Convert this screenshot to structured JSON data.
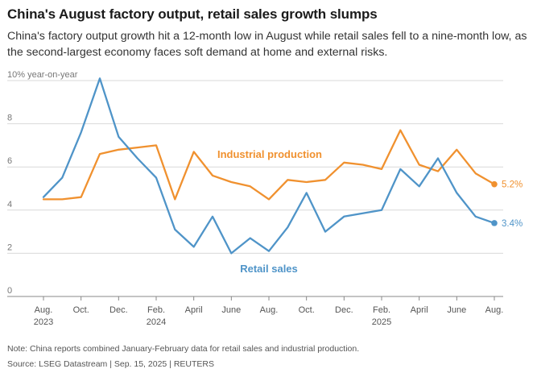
{
  "title": "China's August factory output, retail sales growth slumps",
  "subtitle": "China's factory output growth hit a 12-month low in August while retail sales fell to a nine-month low, as the second-largest economy faces soft demand at home and external risks.",
  "note": "Note: China reports combined January-February data for retail sales and industrial production.",
  "source": "Source: LSEG Datastream | Sep. 15, 2025 | REUTERS",
  "colors": {
    "industrial": "#f0912f",
    "retail": "#4f94c8",
    "grid": "#d9d9d9",
    "tick_text": "#777777",
    "axis": "#888888"
  },
  "chart_data": {
    "type": "line",
    "ylabel": "10% year-on-year",
    "ylim": [
      0,
      10
    ],
    "yticks": [
      0,
      2,
      4,
      6,
      8
    ],
    "x_tick_labels": [
      {
        "month_index": 0,
        "label": "Aug.",
        "year": "2023"
      },
      {
        "month_index": 2,
        "label": "Oct.",
        "year": ""
      },
      {
        "month_index": 4,
        "label": "Dec.",
        "year": ""
      },
      {
        "month_index": 6,
        "label": "Feb.",
        "year": "2024"
      },
      {
        "month_index": 8,
        "label": "April",
        "year": ""
      },
      {
        "month_index": 10,
        "label": "June",
        "year": ""
      },
      {
        "month_index": 12,
        "label": "Aug.",
        "year": ""
      },
      {
        "month_index": 14,
        "label": "Oct.",
        "year": ""
      },
      {
        "month_index": 16,
        "label": "Dec.",
        "year": ""
      },
      {
        "month_index": 18,
        "label": "Feb.",
        "year": "2025"
      },
      {
        "month_index": 20,
        "label": "April",
        "year": ""
      },
      {
        "month_index": 22,
        "label": "June",
        "year": ""
      },
      {
        "month_index": 24,
        "label": "Aug.",
        "year": ""
      }
    ],
    "series": [
      {
        "name": "Industrial production",
        "color_key": "industrial",
        "end_label": "5.2%",
        "points": [
          [
            0,
            4.5
          ],
          [
            1,
            4.5
          ],
          [
            2,
            4.6
          ],
          [
            3,
            6.6
          ],
          [
            4,
            6.8
          ],
          [
            5,
            6.9
          ],
          [
            6,
            7.0
          ],
          [
            7,
            4.5
          ],
          [
            8,
            6.7
          ],
          [
            9,
            5.6
          ],
          [
            10,
            5.3
          ],
          [
            11,
            5.1
          ],
          [
            12,
            4.5
          ],
          [
            13,
            5.4
          ],
          [
            14,
            5.3
          ],
          [
            15,
            5.4
          ],
          [
            16,
            6.2
          ],
          [
            17,
            6.1
          ],
          [
            18,
            5.9
          ],
          [
            19,
            7.7
          ],
          [
            20,
            6.1
          ],
          [
            21,
            5.8
          ],
          [
            22,
            6.8
          ],
          [
            23,
            5.7
          ],
          [
            24,
            5.2
          ]
        ]
      },
      {
        "name": "Retail sales",
        "color_key": "retail",
        "end_label": "3.4%",
        "points": [
          [
            0,
            4.6
          ],
          [
            1,
            5.5
          ],
          [
            2,
            7.6
          ],
          [
            3,
            10.1
          ],
          [
            4,
            7.4
          ],
          [
            5,
            6.4
          ],
          [
            6,
            5.5
          ],
          [
            7,
            3.1
          ],
          [
            8,
            2.3
          ],
          [
            9,
            3.7
          ],
          [
            10,
            2.0
          ],
          [
            11,
            2.7
          ],
          [
            12,
            2.1
          ],
          [
            13,
            3.2
          ],
          [
            14,
            4.8
          ],
          [
            15,
            3.0
          ],
          [
            16,
            3.7
          ],
          [
            18,
            4.0
          ],
          [
            19,
            5.9
          ],
          [
            20,
            5.1
          ],
          [
            21,
            6.4
          ],
          [
            22,
            4.8
          ],
          [
            23,
            3.7
          ],
          [
            24,
            3.4
          ]
        ]
      }
    ]
  }
}
